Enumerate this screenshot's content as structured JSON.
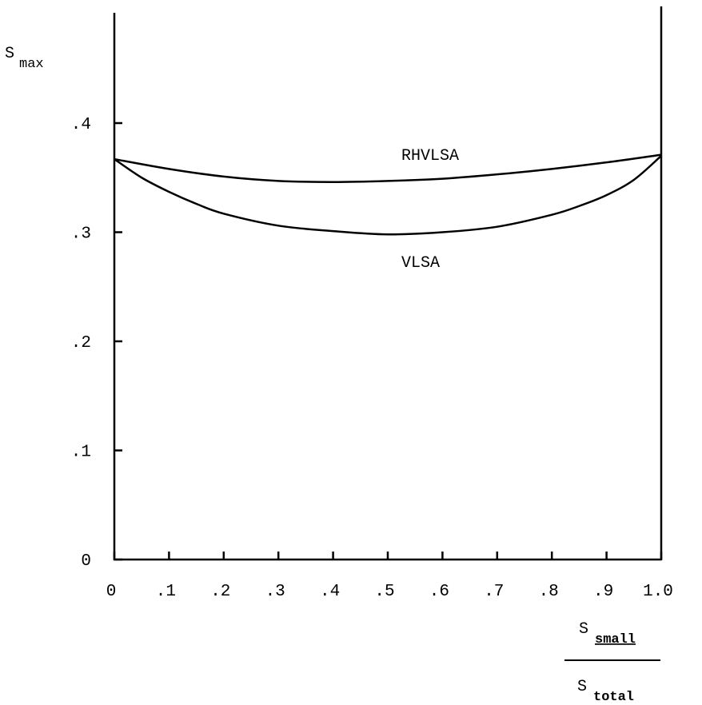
{
  "chart_data": {
    "type": "line",
    "title": "",
    "ylabel": "S",
    "ylabel_sub": "max",
    "xlabel_numerator": "S",
    "xlabel_numerator_sub": "small",
    "xlabel_denominator": "S",
    "xlabel_denominator_sub": "total",
    "xlim": [
      0,
      1.0
    ],
    "ylim": [
      0,
      0.4
    ],
    "x_ticks": [
      {
        "value": 0,
        "label": "0"
      },
      {
        "value": 0.1,
        "label": ".1"
      },
      {
        "value": 0.2,
        "label": ".2"
      },
      {
        "value": 0.3,
        "label": ".3"
      },
      {
        "value": 0.4,
        "label": ".4"
      },
      {
        "value": 0.5,
        "label": ".5"
      },
      {
        "value": 0.6,
        "label": ".6"
      },
      {
        "value": 0.7,
        "label": ".7"
      },
      {
        "value": 0.8,
        "label": ".8"
      },
      {
        "value": 0.9,
        "label": ".9"
      },
      {
        "value": 1.0,
        "label": "1.0"
      }
    ],
    "y_ticks": [
      {
        "value": 0,
        "label": "0"
      },
      {
        "value": 0.1,
        "label": ".1"
      },
      {
        "value": 0.2,
        "label": ".2"
      },
      {
        "value": 0.3,
        "label": ".3"
      },
      {
        "value": 0.4,
        "label": ".4"
      }
    ],
    "grid": false,
    "series": [
      {
        "name": "RHVLSA",
        "x": [
          0,
          0.1,
          0.2,
          0.3,
          0.4,
          0.5,
          0.6,
          0.7,
          0.8,
          0.9,
          1.0
        ],
        "y": [
          0.367,
          0.358,
          0.351,
          0.347,
          0.346,
          0.347,
          0.349,
          0.353,
          0.358,
          0.364,
          0.371
        ]
      },
      {
        "name": "VLSA",
        "x": [
          0,
          0.05,
          0.1,
          0.15,
          0.2,
          0.3,
          0.4,
          0.5,
          0.6,
          0.7,
          0.8,
          0.85,
          0.9,
          0.95,
          1.0
        ],
        "y": [
          0.367,
          0.35,
          0.337,
          0.326,
          0.317,
          0.306,
          0.301,
          0.298,
          0.3,
          0.305,
          0.316,
          0.324,
          0.334,
          0.348,
          0.37
        ]
      }
    ]
  }
}
